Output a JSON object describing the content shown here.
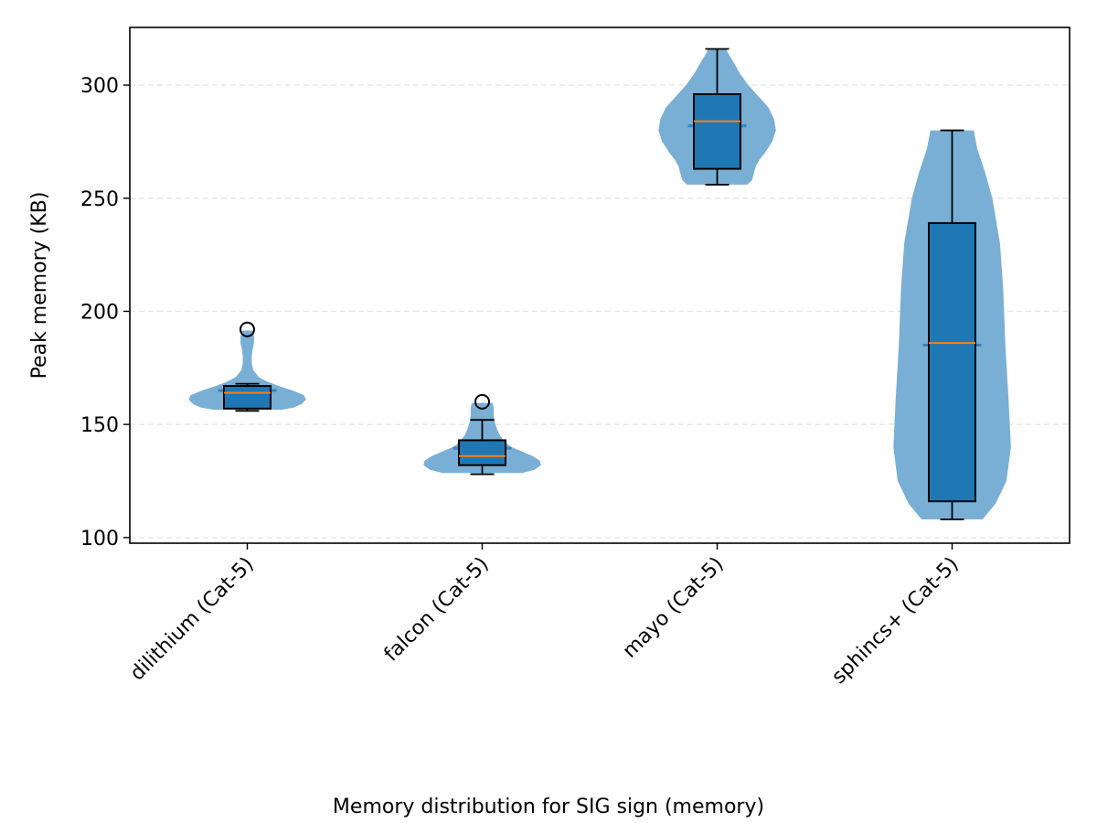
{
  "chart_data": {
    "type": "violin+box",
    "title": "",
    "caption": "Memory distribution for SIG sign (memory)",
    "xlabel": "",
    "ylabel": "Peak memory (KB)",
    "ylim": [
      97.5,
      325.5
    ],
    "yticks": [
      100,
      150,
      200,
      250,
      300
    ],
    "grid": "y, dashed",
    "colors": {
      "violin": "#7aafd5",
      "box": "#1f77b4",
      "median": "#ff7f0e",
      "edge": "#000000",
      "grid": "#e6e6e6"
    },
    "categories": [
      "dilithium (Cat-5)",
      "falcon (Cat-5)",
      "mayo (Cat-5)",
      "sphincs+ (Cat-5)"
    ],
    "series": [
      {
        "category": "dilithium (Cat-5)",
        "violin_min": 156.5,
        "violin_max": 191.5,
        "mean": 165,
        "violin_profile": [
          [
            156.5,
            0.45
          ],
          [
            157.5,
            0.62
          ],
          [
            159,
            0.72
          ],
          [
            161,
            0.78
          ],
          [
            163,
            0.75
          ],
          [
            165,
            0.6
          ],
          [
            167,
            0.42
          ],
          [
            169,
            0.26
          ],
          [
            171,
            0.15
          ],
          [
            174,
            0.08
          ],
          [
            177,
            0.06
          ],
          [
            180,
            0.06
          ],
          [
            183,
            0.07
          ],
          [
            186,
            0.09
          ],
          [
            189,
            0.09
          ],
          [
            191.5,
            0.07
          ]
        ],
        "box": {
          "whisker_low": 156,
          "q1": 157,
          "median": 164,
          "q3": 167,
          "whisker_high": 168
        },
        "outliers": [
          192
        ]
      },
      {
        "category": "falcon (Cat-5)",
        "violin_min": 128.5,
        "violin_max": 159.5,
        "mean": 139.5,
        "violin_profile": [
          [
            128.5,
            0.38
          ],
          [
            130,
            0.5
          ],
          [
            132,
            0.56
          ],
          [
            134,
            0.55
          ],
          [
            136,
            0.48
          ],
          [
            138,
            0.38
          ],
          [
            140,
            0.28
          ],
          [
            142,
            0.22
          ],
          [
            145,
            0.17
          ],
          [
            148,
            0.14
          ],
          [
            151,
            0.12
          ],
          [
            154,
            0.11
          ],
          [
            157,
            0.11
          ],
          [
            159.5,
            0.1
          ]
        ],
        "box": {
          "whisker_low": 128,
          "q1": 132,
          "median": 136,
          "q3": 143,
          "whisker_high": 152
        },
        "outliers": [
          160
        ]
      },
      {
        "category": "mayo (Cat-5)",
        "violin_min": 256,
        "violin_max": 316,
        "mean": 282,
        "violin_profile": [
          [
            256,
            0.33
          ],
          [
            258,
            0.38
          ],
          [
            261,
            0.4
          ],
          [
            264,
            0.42
          ],
          [
            267,
            0.46
          ],
          [
            270,
            0.52
          ],
          [
            275,
            0.6
          ],
          [
            280,
            0.64
          ],
          [
            285,
            0.62
          ],
          [
            290,
            0.56
          ],
          [
            295,
            0.45
          ],
          [
            300,
            0.34
          ],
          [
            305,
            0.25
          ],
          [
            310,
            0.18
          ],
          [
            314,
            0.12
          ],
          [
            316,
            0.1
          ]
        ],
        "box": {
          "whisker_low": 256,
          "q1": 263,
          "median": 284,
          "q3": 296,
          "whisker_high": 316
        },
        "outliers": []
      },
      {
        "category": "sphincs+ (Cat-5)",
        "violin_min": 108,
        "violin_max": 280,
        "mean": 185,
        "violin_profile": [
          [
            108,
            0.28
          ],
          [
            115,
            0.4
          ],
          [
            125,
            0.5
          ],
          [
            140,
            0.54
          ],
          [
            160,
            0.52
          ],
          [
            185,
            0.49
          ],
          [
            210,
            0.47
          ],
          [
            230,
            0.44
          ],
          [
            250,
            0.37
          ],
          [
            262,
            0.3
          ],
          [
            272,
            0.23
          ],
          [
            280,
            0.2
          ]
        ],
        "box": {
          "whisker_low": 108,
          "q1": 116,
          "median": 186,
          "q3": 239,
          "whisker_high": 280
        },
        "outliers": []
      }
    ]
  }
}
